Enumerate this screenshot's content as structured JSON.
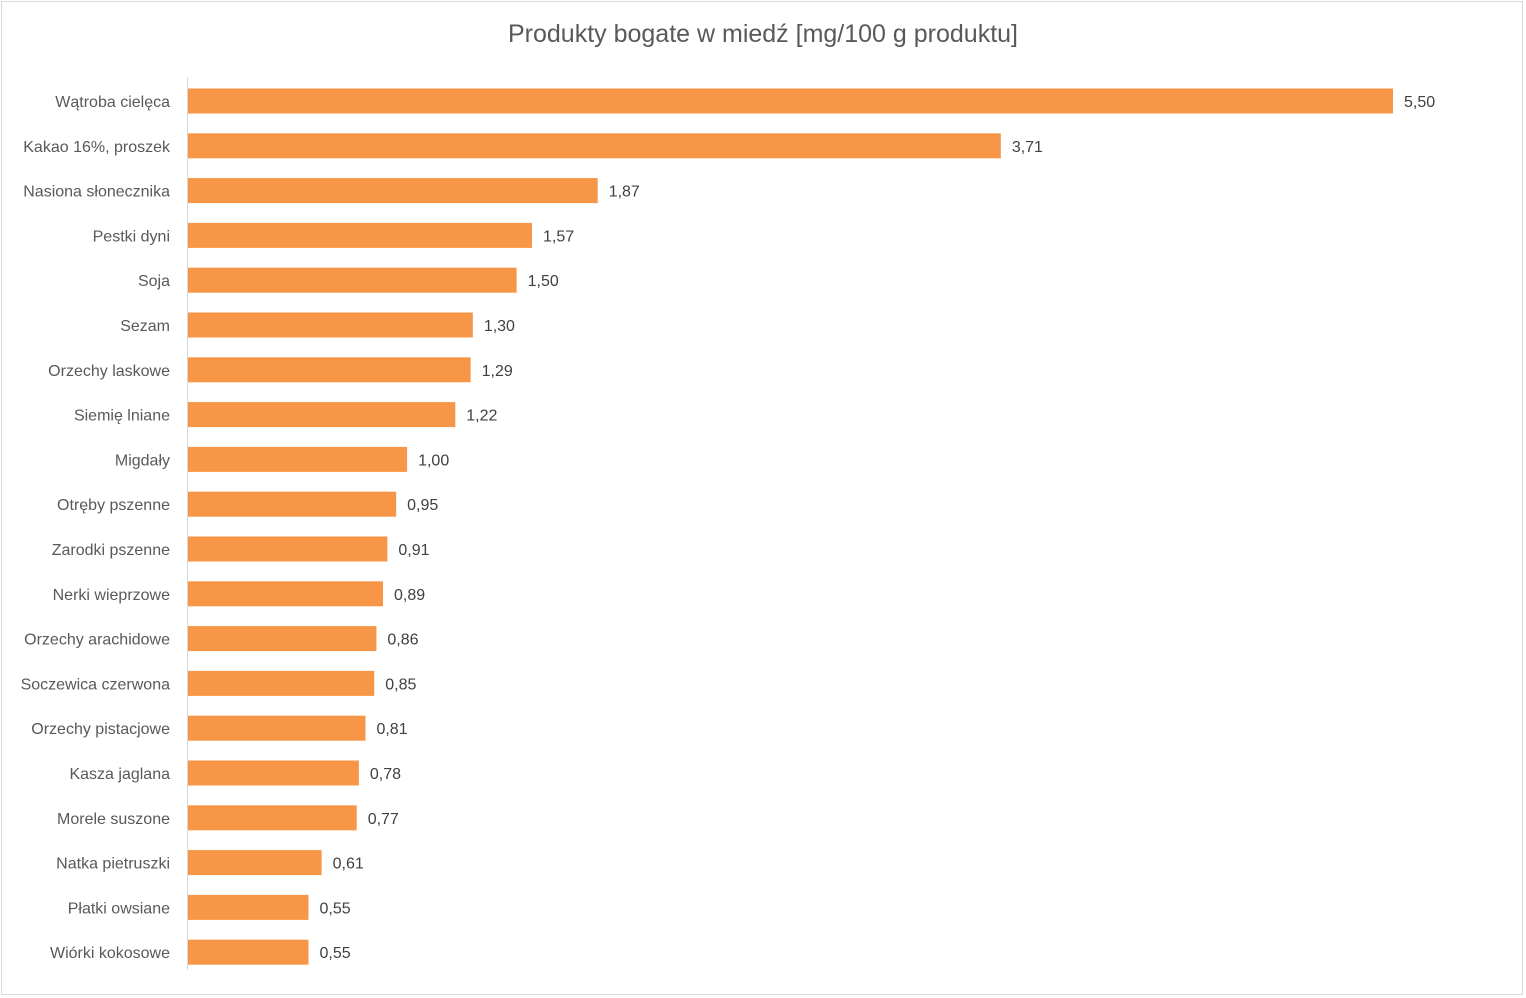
{
  "chart_data": {
    "type": "bar",
    "orientation": "horizontal",
    "title": "Produkty bogate w miedź [mg/100 g produktu]",
    "xlabel": "",
    "ylabel": "",
    "grid": false,
    "legend": "none",
    "xlim": [
      0,
      5.5
    ],
    "bar_color": "#F79646",
    "categories": [
      "Wątroba cielęca",
      "Kakao 16%, proszek",
      "Nasiona słonecznika",
      "Pestki dyni",
      "Soja",
      "Sezam",
      "Orzechy laskowe",
      "Siemię lniane",
      "Migdały",
      "Otręby pszenne",
      "Zarodki pszenne",
      "Nerki wieprzowe",
      "Orzechy arachidowe",
      "Soczewica czerwona",
      "Orzechy pistacjowe",
      "Kasza jaglana",
      "Morele suszone",
      "Natka pietruszki",
      "Płatki owsiane",
      "Wiórki kokosowe"
    ],
    "values": [
      5.5,
      3.71,
      1.87,
      1.57,
      1.5,
      1.3,
      1.29,
      1.22,
      1.0,
      0.95,
      0.91,
      0.89,
      0.86,
      0.85,
      0.81,
      0.78,
      0.77,
      0.61,
      0.55,
      0.55
    ],
    "value_labels": [
      "5,50",
      "3,71",
      "1,87",
      "1,57",
      "1,50",
      "1,30",
      "1,29",
      "1,22",
      "1,00",
      "0,95",
      "0,91",
      "0,89",
      "0,86",
      "0,85",
      "0,81",
      "0,78",
      "0,77",
      "0,61",
      "0,55",
      "0,55"
    ]
  }
}
